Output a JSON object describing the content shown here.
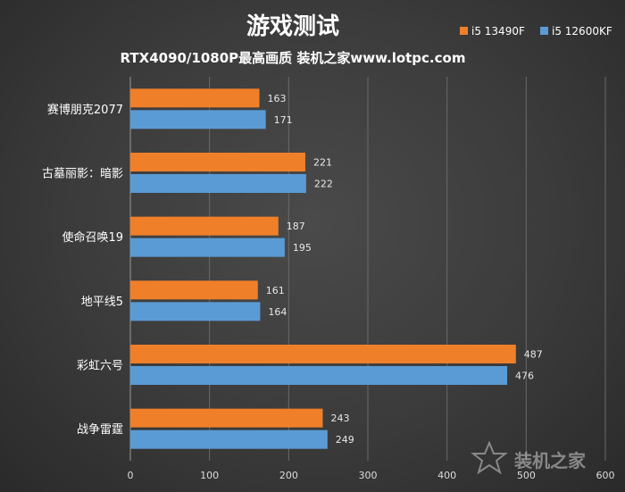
{
  "chart_data": {
    "type": "bar",
    "orientation": "horizontal",
    "title": "游戏测试",
    "subtitle": "RTX4090/1080P最高画质 装机之家www.lotpc.com",
    "categories": [
      "赛博朋克2077",
      "古墓丽影：暗影",
      "使命召唤19",
      "地平线5",
      "彩虹六号",
      "战争雷霆"
    ],
    "series": [
      {
        "name": "i5 13490F",
        "color": "#f07f2a",
        "values": [
          163,
          221,
          187,
          161,
          487,
          243
        ]
      },
      {
        "name": "i5 12600KF",
        "color": "#5b9bd5",
        "values": [
          171,
          222,
          195,
          164,
          476,
          249
        ]
      }
    ],
    "xlim": [
      0,
      600
    ],
    "xticks": [
      0,
      100,
      200,
      300,
      400,
      500,
      600
    ],
    "grid": true,
    "legend_position": "top-right"
  },
  "watermark": "装机之家"
}
